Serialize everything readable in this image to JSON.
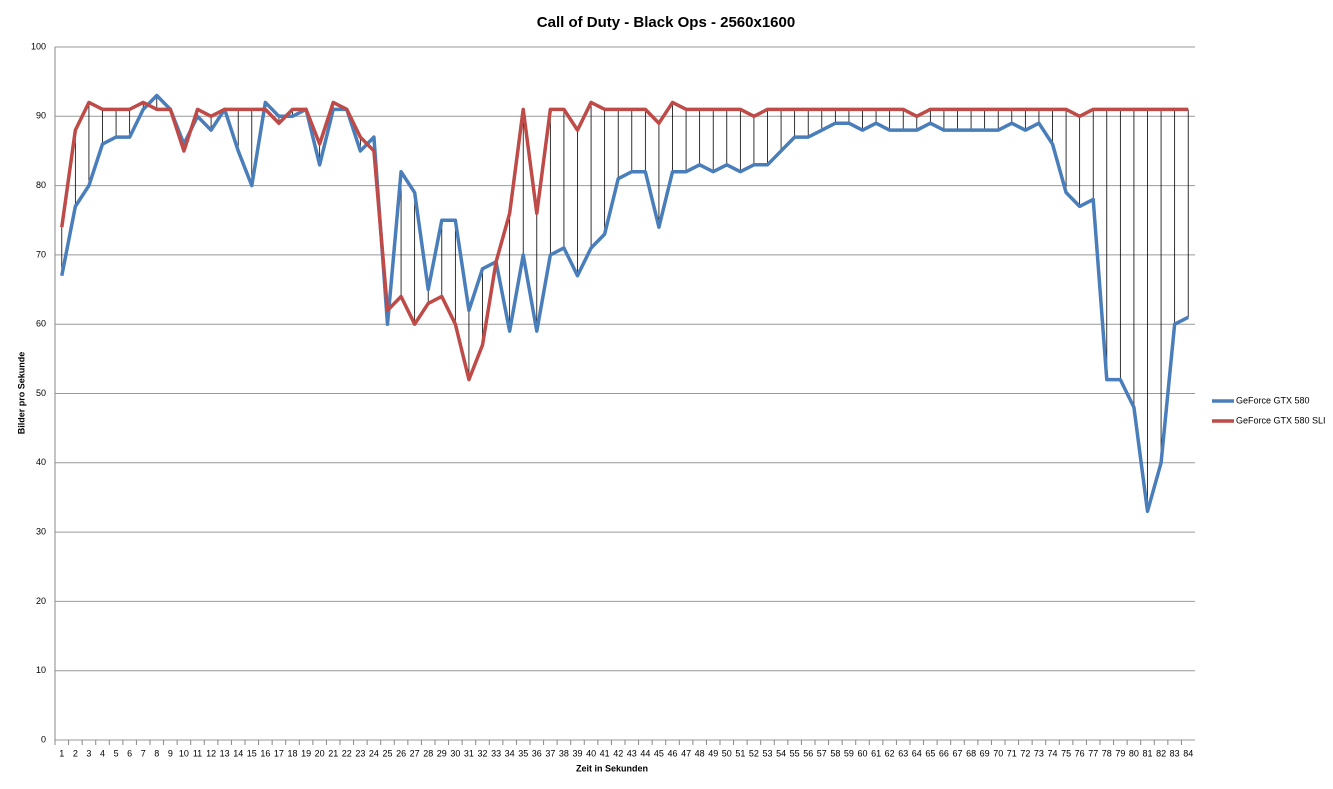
{
  "chart_data": {
    "type": "line",
    "title": "Call of Duty - Black Ops - 2560x1600",
    "x_label": "Zeit in Sekunden",
    "y_label": "Bilder pro Sekunde",
    "categories": [
      "1",
      "2",
      "3",
      "4",
      "5",
      "6",
      "7",
      "8",
      "9",
      "10",
      "11",
      "12",
      "13",
      "14",
      "15",
      "16",
      "17",
      "18",
      "19",
      "20",
      "21",
      "22",
      "23",
      "24",
      "25",
      "26",
      "27",
      "28",
      "29",
      "30",
      "31",
      "32",
      "33",
      "34",
      "35",
      "36",
      "37",
      "38",
      "39",
      "40",
      "41",
      "42",
      "43",
      "44",
      "45",
      "46",
      "47",
      "48",
      "49",
      "50",
      "51",
      "52",
      "53",
      "54",
      "55",
      "56",
      "57",
      "58",
      "59",
      "60",
      "61",
      "62",
      "63",
      "64",
      "65",
      "66",
      "67",
      "68",
      "69",
      "70",
      "71",
      "72",
      "73",
      "74",
      "75",
      "76",
      "77",
      "78",
      "79",
      "80",
      "81",
      "82",
      "83",
      "84"
    ],
    "series": [
      {
        "name": "GeForce GTX 580",
        "color": "#4a7ebb",
        "values": [
          67,
          77,
          80,
          86,
          87,
          87,
          91,
          93,
          91,
          86,
          90,
          88,
          91,
          85,
          80,
          92,
          90,
          90,
          91,
          83,
          91,
          91,
          85,
          87,
          60,
          82,
          79,
          65,
          75,
          75,
          62,
          68,
          69,
          59,
          70,
          59,
          70,
          71,
          67,
          71,
          73,
          81,
          82,
          82,
          74,
          82,
          82,
          83,
          82,
          83,
          82,
          83,
          83,
          85,
          87,
          87,
          88,
          89,
          89,
          88,
          89,
          88,
          88,
          88,
          89,
          88,
          88,
          88,
          88,
          88,
          89,
          88,
          89,
          86,
          79,
          77,
          78,
          52,
          52,
          48,
          33,
          40,
          60,
          61
        ]
      },
      {
        "name": "GeForce GTX 580 SLI",
        "color": "#be4b48",
        "values": [
          74,
          88,
          92,
          91,
          91,
          91,
          92,
          91,
          91,
          85,
          91,
          90,
          91,
          91,
          91,
          91,
          89,
          91,
          91,
          86,
          92,
          91,
          87,
          85,
          62,
          64,
          60,
          63,
          64,
          60,
          52,
          57,
          69,
          76,
          91,
          76,
          91,
          91,
          88,
          92,
          91,
          91,
          91,
          91,
          89,
          92,
          91,
          91,
          91,
          91,
          91,
          90,
          91,
          91,
          91,
          91,
          91,
          91,
          91,
          91,
          91,
          91,
          91,
          90,
          91,
          91,
          91,
          91,
          91,
          91,
          91,
          91,
          91,
          91,
          91,
          90,
          91,
          91,
          91,
          91,
          91,
          91,
          91,
          91
        ]
      }
    ],
    "ylim": [
      0,
      100
    ],
    "yticks": [
      0,
      10,
      20,
      30,
      40,
      50,
      60,
      70,
      80,
      90,
      100
    ],
    "grid": true,
    "drop_lines": true,
    "legend_position": "right"
  }
}
